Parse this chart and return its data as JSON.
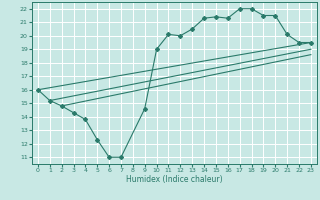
{
  "xlabel": "Humidex (Indice chaleur)",
  "xlim": [
    -0.5,
    23.5
  ],
  "ylim": [
    10.5,
    22.5
  ],
  "xticks": [
    0,
    1,
    2,
    3,
    4,
    5,
    6,
    7,
    8,
    9,
    10,
    11,
    12,
    13,
    14,
    15,
    16,
    17,
    18,
    19,
    20,
    21,
    22,
    23
  ],
  "yticks": [
    11,
    12,
    13,
    14,
    15,
    16,
    17,
    18,
    19,
    20,
    21,
    22
  ],
  "bg_color": "#c8e8e4",
  "line_color": "#2a7a6a",
  "grid_color": "#ffffff",
  "main_x": [
    0,
    1,
    2,
    3,
    4,
    5,
    6,
    7,
    9,
    10,
    11,
    12,
    13,
    14,
    15,
    16,
    17,
    18,
    19,
    20,
    21,
    22,
    23
  ],
  "main_y": [
    16.0,
    15.2,
    14.8,
    14.3,
    13.8,
    12.3,
    11.0,
    11.0,
    14.6,
    19.0,
    20.1,
    20.0,
    20.5,
    21.3,
    21.4,
    21.3,
    22.0,
    22.0,
    21.5,
    21.5,
    20.1,
    19.5,
    19.5
  ],
  "trend1_x": [
    0,
    23
  ],
  "trend1_y": [
    16.0,
    19.5
  ],
  "trend2_x": [
    1,
    23
  ],
  "trend2_y": [
    15.2,
    19.0
  ],
  "trend3_x": [
    2,
    23
  ],
  "trend3_y": [
    14.8,
    18.6
  ]
}
